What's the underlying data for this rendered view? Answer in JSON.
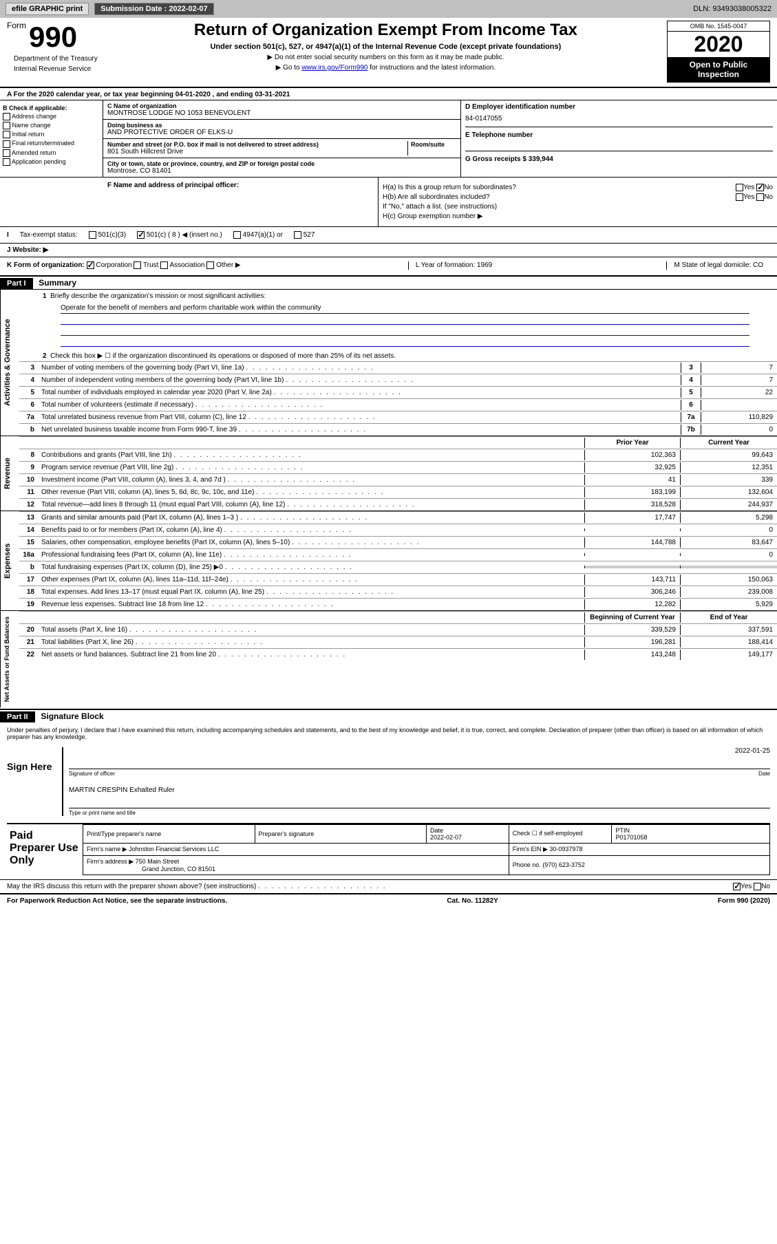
{
  "topbar": {
    "efile": "efile GRAPHIC print",
    "submission_label": "Submission Date : 2022-02-07",
    "dln": "DLN: 93493038005322"
  },
  "header": {
    "form_word": "Form",
    "form_num": "990",
    "title": "Return of Organization Exempt From Income Tax",
    "subtitle": "Under section 501(c), 527, or 4947(a)(1) of the Internal Revenue Code (except private foundations)",
    "line1": "▶ Do not enter social security numbers on this form as it may be made public.",
    "line2_pre": "▶ Go to ",
    "line2_link": "www.irs.gov/Form990",
    "line2_post": " for instructions and the latest information.",
    "omb": "OMB No. 1545-0047",
    "year": "2020",
    "open1": "Open to Public",
    "open2": "Inspection",
    "dept1": "Department of the Treasury",
    "dept2": "Internal Revenue Service"
  },
  "row_a": "A For the 2020 calendar year, or tax year beginning 04-01-2020    , and ending 03-31-2021",
  "col_b": {
    "header": "B Check if applicable:",
    "items": [
      "Address change",
      "Name change",
      "Initial return",
      "Final return/terminated",
      "Amended return",
      "Application pending"
    ]
  },
  "col_c": {
    "name_lbl": "C Name of organization",
    "name_val": "MONTROSE LODGE NO 1053 BENEVOLENT",
    "dba_lbl": "Doing business as",
    "dba_val": "AND PROTECTIVE ORDER OF ELKS-U",
    "addr_lbl": "Number and street (or P.O. box if mail is not delivered to street address)",
    "room_lbl": "Room/suite",
    "addr_val": "801 South Hillcrest Drive",
    "city_lbl": "City or town, state or province, country, and ZIP or foreign postal code",
    "city_val": "Montrose, CO  81401"
  },
  "col_d": {
    "ein_lbl": "D Employer identification number",
    "ein_val": "84-0147055",
    "tel_lbl": "E Telephone number",
    "gross_lbl": "G Gross receipts $ 339,944"
  },
  "row_f": {
    "lbl": "F  Name and address of principal officer:"
  },
  "row_h": {
    "ha": "H(a)  Is this a group return for subordinates?",
    "hb": "H(b)  Are all subordinates included?",
    "hb_note": "If \"No,\" attach a list. (see instructions)",
    "hc": "H(c)  Group exemption number ▶",
    "yes": "Yes",
    "no": "No"
  },
  "row_i": {
    "lbl": "Tax-exempt status:",
    "opt1": "501(c)(3)",
    "opt2": "501(c) ( 8 ) ◀ (insert no.)",
    "opt3": "4947(a)(1) or",
    "opt4": "527"
  },
  "row_j": "J   Website: ▶",
  "row_k": {
    "k": "K Form of organization:",
    "corp": "Corporation",
    "trust": "Trust",
    "assoc": "Association",
    "other": "Other ▶",
    "l": "L Year of formation: 1969",
    "m": "M State of legal domicile: CO"
  },
  "part1": {
    "hdr": "Part I",
    "title": "Summary",
    "q1": "Briefly describe the organization's mission or most significant activities:",
    "mission": "Operate for the benefit of members and perform charitable work within the community",
    "q2": "Check this box ▶ ☐  if the organization discontinued its operations or disposed of more than 25% of its net assets.",
    "lines": [
      {
        "n": "3",
        "t": "Number of voting members of the governing body (Part VI, line 1a)",
        "bn": "3",
        "v": "7"
      },
      {
        "n": "4",
        "t": "Number of independent voting members of the governing body (Part VI, line 1b)",
        "bn": "4",
        "v": "7"
      },
      {
        "n": "5",
        "t": "Total number of individuals employed in calendar year 2020 (Part V, line 2a)",
        "bn": "5",
        "v": "22"
      },
      {
        "n": "6",
        "t": "Total number of volunteers (estimate if necessary)",
        "bn": "6",
        "v": ""
      },
      {
        "n": "7a",
        "t": "Total unrelated business revenue from Part VIII, column (C), line 12",
        "bn": "7a",
        "v": "110,829"
      },
      {
        "n": "b",
        "t": "Net unrelated business taxable income from Form 990-T, line 39",
        "bn": "7b",
        "v": "0"
      }
    ],
    "col_hdr1": "Prior Year",
    "col_hdr2": "Current Year",
    "rev": [
      {
        "n": "8",
        "t": "Contributions and grants (Part VIII, line 1h)",
        "c1": "102,363",
        "c2": "99,643"
      },
      {
        "n": "9",
        "t": "Program service revenue (Part VIII, line 2g)",
        "c1": "32,925",
        "c2": "12,351"
      },
      {
        "n": "10",
        "t": "Investment income (Part VIII, column (A), lines 3, 4, and 7d )",
        "c1": "41",
        "c2": "339"
      },
      {
        "n": "11",
        "t": "Other revenue (Part VIII, column (A), lines 5, 6d, 8c, 9c, 10c, and 11e)",
        "c1": "183,199",
        "c2": "132,604"
      },
      {
        "n": "12",
        "t": "Total revenue—add lines 8 through 11 (must equal Part VIII, column (A), line 12)",
        "c1": "318,528",
        "c2": "244,937"
      }
    ],
    "exp": [
      {
        "n": "13",
        "t": "Grants and similar amounts paid (Part IX, column (A), lines 1–3 )",
        "c1": "17,747",
        "c2": "5,298"
      },
      {
        "n": "14",
        "t": "Benefits paid to or for members (Part IX, column (A), line 4)",
        "c1": "",
        "c2": "0"
      },
      {
        "n": "15",
        "t": "Salaries, other compensation, employee benefits (Part IX, column (A), lines 5–10)",
        "c1": "144,788",
        "c2": "83,647"
      },
      {
        "n": "16a",
        "t": "Professional fundraising fees (Part IX, column (A), line 11e)",
        "c1": "",
        "c2": "0"
      },
      {
        "n": "b",
        "t": "Total fundraising expenses (Part IX, column (D), line 25) ▶0",
        "c1": "gray",
        "c2": "gray"
      },
      {
        "n": "17",
        "t": "Other expenses (Part IX, column (A), lines 11a–11d, 11f–24e)",
        "c1": "143,711",
        "c2": "150,063"
      },
      {
        "n": "18",
        "t": "Total expenses. Add lines 13–17 (must equal Part IX, column (A), line 25)",
        "c1": "306,246",
        "c2": "239,008"
      },
      {
        "n": "19",
        "t": "Revenue less expenses. Subtract line 18 from line 12",
        "c1": "12,282",
        "c2": "5,929"
      }
    ],
    "net_hdr1": "Beginning of Current Year",
    "net_hdr2": "End of Year",
    "net": [
      {
        "n": "20",
        "t": "Total assets (Part X, line 16)",
        "c1": "339,529",
        "c2": "337,591"
      },
      {
        "n": "21",
        "t": "Total liabilities (Part X, line 26)",
        "c1": "196,281",
        "c2": "188,414"
      },
      {
        "n": "22",
        "t": "Net assets or fund balances. Subtract line 21 from line 20",
        "c1": "143,248",
        "c2": "149,177"
      }
    ],
    "vtab1": "Activities & Governance",
    "vtab2": "Revenue",
    "vtab3": "Expenses",
    "vtab4": "Net Assets or Fund Balances"
  },
  "part2": {
    "hdr": "Part II",
    "title": "Signature Block",
    "text": "Under penalties of perjury, I declare that I have examined this return, including accompanying schedules and statements, and to the best of my knowledge and belief, it is true, correct, and complete. Declaration of preparer (other than officer) is based on all information of which preparer has any knowledge.",
    "sign_here": "Sign Here",
    "sig_of_officer": "Signature of officer",
    "date_lbl": "Date",
    "date_val": "2022-01-25",
    "officer_name": "MARTIN CRESPIN  Exhalted Ruler",
    "type_name": "Type or print name and title",
    "paid": "Paid Preparer Use Only",
    "prep_name_lbl": "Print/Type preparer's name",
    "prep_sig_lbl": "Preparer's signature",
    "prep_date_lbl": "Date",
    "prep_date_val": "2022-02-07",
    "check_lbl": "Check ☐ if self-employed",
    "ptin_lbl": "PTIN",
    "ptin_val": "P01701058",
    "firm_name_lbl": "Firm's name    ▶",
    "firm_name_val": "Johnston Financial Services LLC",
    "firm_ein_lbl": "Firm's EIN ▶",
    "firm_ein_val": "30-0937978",
    "firm_addr_lbl": "Firm's address ▶",
    "firm_addr_val1": "750 Main Street",
    "firm_addr_val2": "Grand Junction, CO  81501",
    "phone_lbl": "Phone no.",
    "phone_val": "(970) 623-3752"
  },
  "bottom": {
    "q": "May the IRS discuss this return with the preparer shown above? (see instructions)",
    "yes": "Yes",
    "no": "No"
  },
  "footer": {
    "left": "For Paperwork Reduction Act Notice, see the separate instructions.",
    "mid": "Cat. No. 11282Y",
    "right": "Form 990 (2020)"
  }
}
